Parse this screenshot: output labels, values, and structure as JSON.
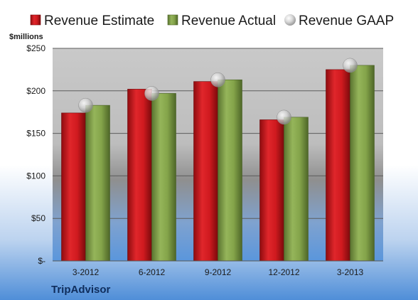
{
  "chart_data": {
    "type": "bar",
    "title": "",
    "unit_label": "$millions",
    "brand": "TripAdvisor",
    "categories": [
      "3-2012",
      "6-2012",
      "9-2012",
      "12-2012",
      "3-2013"
    ],
    "series": [
      {
        "name": "Revenue Estimate",
        "kind": "bar",
        "color": "#d0191e",
        "values": [
          174,
          202,
          211,
          166,
          225
        ]
      },
      {
        "name": "Revenue Actual",
        "kind": "bar",
        "color": "#7f9e45",
        "values": [
          183,
          197,
          213,
          169,
          230
        ]
      },
      {
        "name": "Revenue GAAP",
        "kind": "marker",
        "color": "#c8c8c8",
        "values": [
          183,
          197,
          213,
          169,
          230
        ]
      }
    ],
    "ylim": [
      0,
      250
    ],
    "yticks": [
      {
        "value": 0,
        "label": "$-"
      },
      {
        "value": 50,
        "label": "$50"
      },
      {
        "value": 100,
        "label": "$100"
      },
      {
        "value": 150,
        "label": "$150"
      },
      {
        "value": 200,
        "label": "$200"
      },
      {
        "value": 250,
        "label": "$250"
      }
    ],
    "grid": true,
    "legend_position": "top"
  }
}
